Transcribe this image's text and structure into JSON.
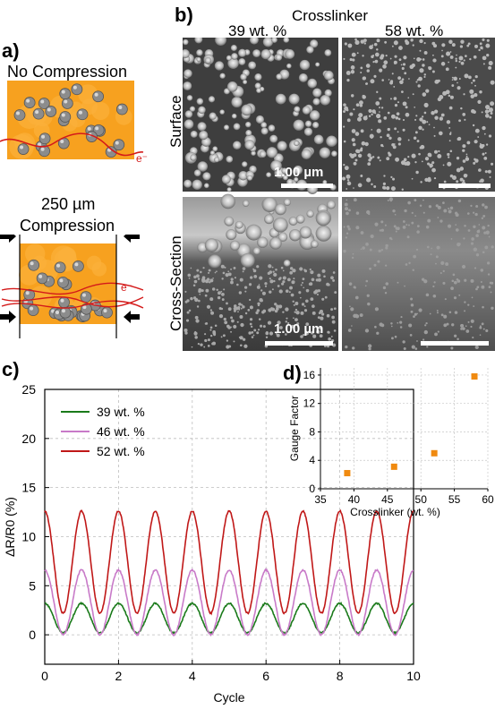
{
  "panels": {
    "a": {
      "label": "a)",
      "top_title": "No Compression",
      "bottom_title_line1": "250 µm",
      "bottom_title_line2": "Compression",
      "electron_label": "e⁻",
      "colors": {
        "matrix": "#f7a11f",
        "particle": "#8c8c8c",
        "path": "#d41a1a"
      }
    },
    "b": {
      "label": "b)",
      "header": "Crosslinker",
      "columns": [
        "39 wt. %",
        "58 wt. %"
      ],
      "rows": [
        "Surface",
        "Cross-Section"
      ],
      "scalebar_label": "1.00 µm"
    },
    "c": {
      "label": "c)"
    },
    "d": {
      "label": "d)"
    }
  },
  "chart_data": [
    {
      "type": "line",
      "panel": "c",
      "xlabel": "Cycle",
      "ylabel": "ΔR/R0 (%)",
      "xlim": [
        0,
        10
      ],
      "ylim": [
        -3,
        25
      ],
      "xticks": [
        0,
        2,
        4,
        6,
        8,
        10
      ],
      "yticks": [
        0,
        5,
        10,
        15,
        20,
        25
      ],
      "grid": true,
      "legend": "top-left",
      "series": [
        {
          "name": "39 wt. %",
          "color": "#1a7a1a",
          "min": 0.2,
          "max": 3.2,
          "phase": 0.0
        },
        {
          "name": "46 wt. %",
          "color": "#c87ac8",
          "min": 0.0,
          "max": 6.6,
          "phase": 0.0
        },
        {
          "name": "52 wt. %",
          "color": "#c01818",
          "min": 2.2,
          "max": 12.6,
          "phase": 0.0
        }
      ]
    },
    {
      "type": "scatter",
      "panel": "d",
      "xlabel": "Crosslinker (wt. %)",
      "ylabel": "Gauge Factor",
      "xlim": [
        35,
        60
      ],
      "ylim": [
        0,
        17
      ],
      "xticks": [
        35,
        40,
        45,
        50,
        55,
        60
      ],
      "yticks": [
        0,
        4,
        8,
        12,
        16
      ],
      "grid": true,
      "color": "#f08a10",
      "x": [
        39,
        46,
        52,
        58
      ],
      "y": [
        2.2,
        3.1,
        5.0,
        15.8
      ]
    }
  ]
}
